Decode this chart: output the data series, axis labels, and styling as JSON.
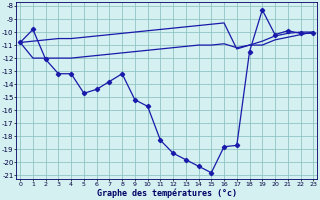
{
  "title": "Graphe des températures (°c)",
  "bg_color": "#d4f0f0",
  "grid_color": "#90c4c4",
  "line_color": "#1a1aaa",
  "xlim_min": -0.3,
  "xlim_max": 23.3,
  "ylim_min": -21.3,
  "ylim_max": -7.7,
  "yticks": [
    -21,
    -20,
    -19,
    -18,
    -17,
    -16,
    -15,
    -14,
    -13,
    -12,
    -11,
    -10,
    -9,
    -8
  ],
  "xticks": [
    0,
    1,
    2,
    3,
    4,
    5,
    6,
    7,
    8,
    9,
    10,
    11,
    12,
    13,
    14,
    15,
    16,
    17,
    18,
    19,
    20,
    21,
    22,
    23
  ],
  "curve_main_x": [
    0,
    1,
    2,
    3,
    4,
    5,
    6,
    7,
    8,
    9,
    10,
    11,
    12,
    13,
    14,
    15,
    16,
    17,
    18,
    19,
    20,
    21,
    22,
    23
  ],
  "curve_main_y": [
    -10.8,
    -9.8,
    -12.1,
    -13.2,
    -13.2,
    -14.7,
    -14.4,
    -13.8,
    -13.2,
    -15.2,
    -15.7,
    -18.3,
    -19.3,
    -19.8,
    -20.3,
    -20.8,
    -18.8,
    -18.7,
    -11.5,
    -8.3,
    -10.2,
    -9.9,
    -10.1,
    -10.1
  ],
  "curve_top_x": [
    0,
    1,
    2,
    3,
    4,
    5,
    6,
    7,
    8,
    9,
    10,
    11,
    12,
    13,
    14,
    15,
    16,
    17,
    18,
    19,
    20,
    21,
    22,
    23
  ],
  "curve_top_y": [
    -10.8,
    -10.7,
    -10.6,
    -10.5,
    -10.5,
    -10.4,
    -10.3,
    -10.2,
    -10.1,
    -10.0,
    -9.9,
    -9.8,
    -9.7,
    -9.6,
    -9.5,
    -9.4,
    -9.3,
    -11.3,
    -11.0,
    -10.7,
    -10.3,
    -10.1,
    -10.0,
    -10.0
  ],
  "curve_mid_x": [
    0,
    1,
    2,
    3,
    4,
    5,
    6,
    7,
    8,
    9,
    10,
    11,
    12,
    13,
    14,
    15,
    16,
    17,
    18,
    19,
    20,
    21,
    22,
    23
  ],
  "curve_mid_y": [
    -10.8,
    -12.0,
    -12.0,
    -12.0,
    -12.0,
    -11.9,
    -11.8,
    -11.7,
    -11.6,
    -11.5,
    -11.4,
    -11.3,
    -11.2,
    -11.1,
    -11.0,
    -11.0,
    -10.9,
    -11.2,
    -11.0,
    -11.0,
    -10.6,
    -10.4,
    -10.2,
    -10.0
  ]
}
